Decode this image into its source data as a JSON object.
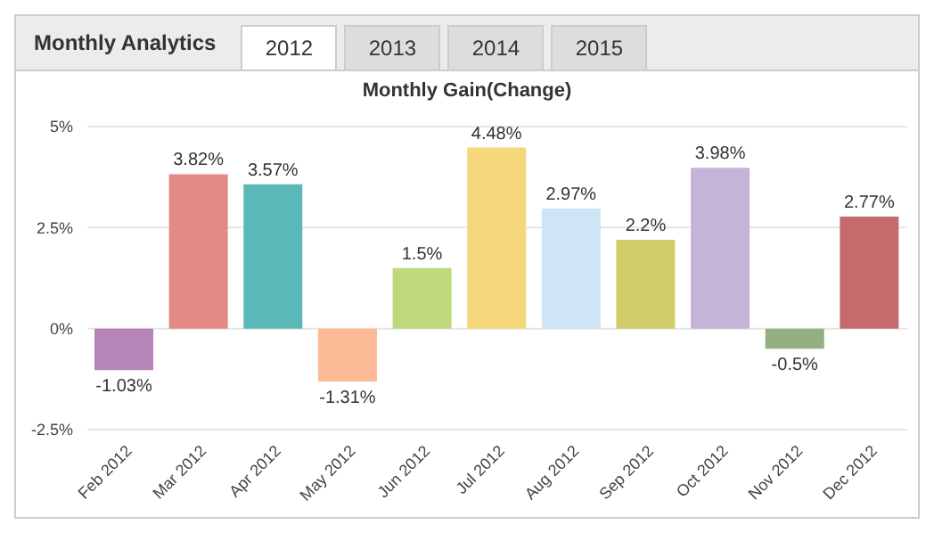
{
  "chart_data": {
    "type": "bar",
    "title": "Monthly Gain(Change)",
    "annotations": [
      "Monthly Analytics",
      "2012",
      "2013",
      "2014",
      "2015"
    ],
    "categories": [
      "Feb 2012",
      "Mar 2012",
      "Apr 2012",
      "May 2012",
      "Jun 2012",
      "Jul 2012",
      "Aug 2012",
      "Sep 2012",
      "Oct 2012",
      "Nov 2012",
      "Dec 2012"
    ],
    "values": [
      -1.03,
      3.82,
      3.57,
      -1.31,
      1.5,
      4.48,
      2.97,
      2.2,
      3.98,
      -0.5,
      2.77
    ],
    "value_labels": [
      "-1.03%",
      "3.82%",
      "3.57%",
      "-1.31%",
      "1.5%",
      "4.48%",
      "2.97%",
      "2.2%",
      "3.98%",
      "-0.5%",
      "2.77%"
    ],
    "colors": [
      "#b784b7",
      "#e48a86",
      "#5bb8b8",
      "#fbb995",
      "#bdd97a",
      "#f5d67a",
      "#cfe5f6",
      "#d2cb6a",
      "#c3b4d8",
      "#94b083",
      "#c56b6e"
    ],
    "ylim": [
      -2.5,
      5
    ],
    "yticks": [
      {
        "value": -2.5,
        "label": "-2.5%"
      },
      {
        "value": 0,
        "label": "0%"
      },
      {
        "value": 2.5,
        "label": "2.5%"
      },
      {
        "value": 5,
        "label": "5%"
      }
    ],
    "grid": "y"
  }
}
